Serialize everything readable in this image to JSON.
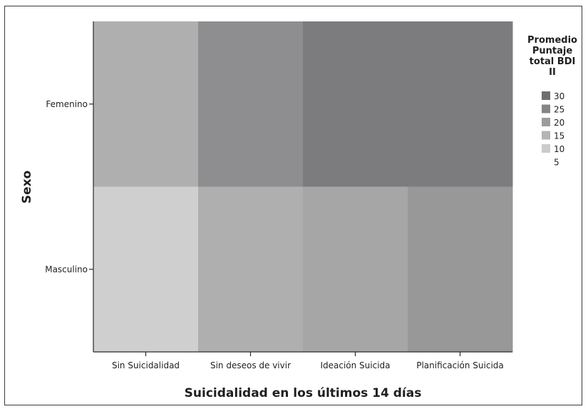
{
  "chart_data": {
    "type": "heatmap",
    "x_categories": [
      "Sin Suicidalidad",
      "Sin deseos de vivir",
      "Ideación Suicida",
      "Planificación Suicida"
    ],
    "y_categories": [
      "Femenino",
      "Masculino"
    ],
    "values": [
      [
        16,
        23,
        27,
        27
      ],
      [
        9,
        16,
        18,
        21
      ]
    ],
    "xlabel": "Suicidalidad en los últimos 14 días",
    "ylabel": "Sexo",
    "legend": {
      "title_lines": [
        "Promedio",
        "Puntaje",
        "total BDI",
        "II"
      ],
      "levels": [
        30,
        25,
        20,
        15,
        10,
        5
      ],
      "placement": "right"
    },
    "color_scale": {
      "low": "#e2e2e2",
      "high": "#6e6e70",
      "domain": [
        5,
        30
      ]
    }
  }
}
